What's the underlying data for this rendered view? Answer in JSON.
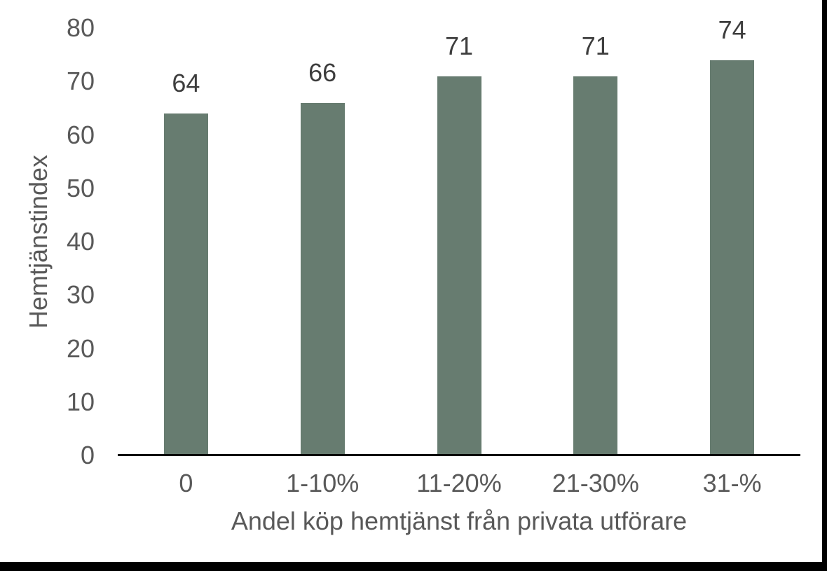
{
  "chart_data": {
    "type": "bar",
    "categories": [
      "0",
      "1-10%",
      "11-20%",
      "21-30%",
      "31-%"
    ],
    "values": [
      64,
      66,
      71,
      71,
      74
    ],
    "data_labels": [
      "64",
      "66",
      "71",
      "71",
      "74"
    ],
    "title": "",
    "xlabel": "Andel köp hemtjänst från privata utförare",
    "ylabel": "Hemtjänstindex",
    "ylim": [
      0,
      80
    ],
    "yticks": [
      0,
      10,
      20,
      30,
      40,
      50,
      60,
      70,
      80
    ],
    "grid": false,
    "legend": "none",
    "bar_color": "#677C70",
    "axis_line_color": "#000000",
    "tick_label_color": "#595959",
    "axis_title_color": "#595959",
    "data_label_color": "#3D3D3D",
    "frame_color": "#000000",
    "background_color": "#FFFFFF"
  }
}
